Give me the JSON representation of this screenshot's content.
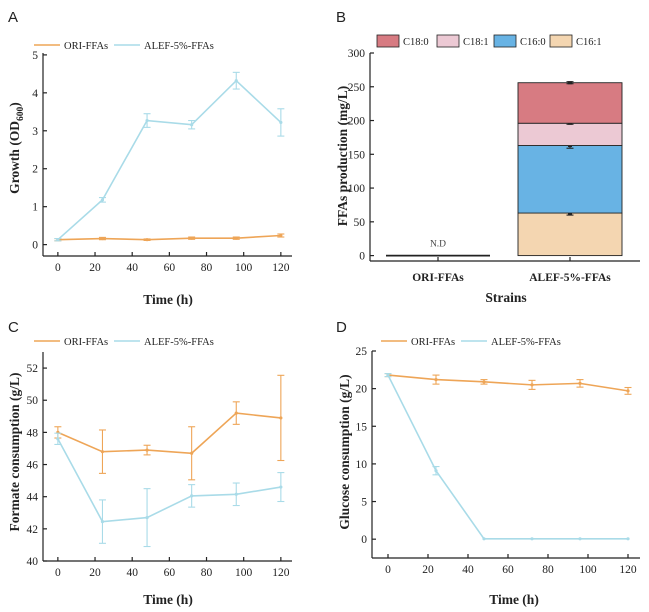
{
  "colors": {
    "orange": "#EEA557",
    "lightblue": "#A9DBE8",
    "c18_0": "#D77B82",
    "c18_1": "#ECC9D4",
    "c16_0": "#68B3E4",
    "c16_1": "#F4D6B1",
    "axis": "#222222"
  },
  "chart_data": [
    {
      "panel": "A",
      "type": "line",
      "title": "",
      "xlabel": "Time (h)",
      "ylabel_main": "Growth (OD",
      "ylabel_sub": "600",
      "ylabel_close": ")",
      "xlim": [
        -8,
        126
      ],
      "ylim": [
        -0.3,
        5.05
      ],
      "xticks": [
        0,
        20,
        40,
        60,
        80,
        100,
        120
      ],
      "yticks": [
        0,
        1,
        2,
        3,
        4,
        5
      ],
      "series": [
        {
          "name": "ORI-FFAs",
          "color_key": "orange",
          "x": [
            0,
            24,
            48,
            72,
            96,
            120
          ],
          "y": [
            0.13,
            0.16,
            0.13,
            0.17,
            0.17,
            0.24
          ],
          "err": [
            0.03,
            0.03,
            0.02,
            0.03,
            0.03,
            0.04
          ]
        },
        {
          "name": "ALEF-5%-FFAs",
          "color_key": "lightblue",
          "x": [
            0,
            24,
            48,
            72,
            96,
            120
          ],
          "y": [
            0.13,
            1.18,
            3.27,
            3.16,
            4.32,
            3.22
          ],
          "err": [
            0.03,
            0.06,
            0.18,
            0.11,
            0.22,
            0.36
          ]
        }
      ]
    },
    {
      "panel": "B",
      "type": "stacked-bar",
      "title": "",
      "xlabel": "Strains",
      "ylabel": "FFAs production (mg/L)",
      "ylim": [
        -8,
        300
      ],
      "yticks": [
        0,
        50,
        100,
        150,
        200,
        250,
        300
      ],
      "categories": [
        "ORI-FFAs",
        "ALEF-5%-FFAs"
      ],
      "na_label": "N.D",
      "legend": [
        "C18:0",
        "C18:1",
        "C16:0",
        "C16:1"
      ],
      "series": [
        {
          "name": "C16:1",
          "color_key": "c16_1",
          "values": [
            0,
            63
          ],
          "top_err": [
            0,
            3
          ]
        },
        {
          "name": "C16:0",
          "color_key": "c16_0",
          "values": [
            0,
            100
          ],
          "top_err": [
            0,
            4
          ]
        },
        {
          "name": "C18:1",
          "color_key": "c18_1",
          "values": [
            0,
            33
          ],
          "top_err": [
            0,
            1.5
          ]
        },
        {
          "name": "C18:0",
          "color_key": "c18_0",
          "values": [
            0,
            60
          ],
          "top_err": [
            0,
            1.5
          ]
        }
      ]
    },
    {
      "panel": "C",
      "type": "line",
      "title": "",
      "xlabel": "Time (h)",
      "ylabel": "Formate consumption (g/L)",
      "xlim": [
        -8,
        126
      ],
      "ylim": [
        40,
        53
      ],
      "xticks": [
        0,
        20,
        40,
        60,
        80,
        100,
        120
      ],
      "yticks": [
        40,
        42,
        44,
        46,
        48,
        50,
        52
      ],
      "series": [
        {
          "name": "ORI-FFAs",
          "color_key": "orange",
          "x": [
            0,
            24,
            48,
            72,
            96,
            120
          ],
          "y": [
            48.0,
            46.8,
            46.9,
            46.7,
            49.2,
            48.9
          ],
          "err": [
            0.35,
            1.35,
            0.3,
            1.65,
            0.7,
            2.65
          ]
        },
        {
          "name": "ALEF-5%-FFAs",
          "color_key": "lightblue",
          "x": [
            0,
            24,
            48,
            72,
            96,
            120
          ],
          "y": [
            47.6,
            42.45,
            42.7,
            44.05,
            44.15,
            44.6
          ],
          "err": [
            0.35,
            1.35,
            1.8,
            0.7,
            0.7,
            0.9
          ]
        }
      ]
    },
    {
      "panel": "D",
      "type": "line",
      "title": "",
      "xlabel": "Time (h)",
      "ylabel": "Glucose consumption (g/L)",
      "xlim": [
        -8,
        126
      ],
      "ylim": [
        -2.5,
        25
      ],
      "xticks": [
        0,
        20,
        40,
        60,
        80,
        100,
        120
      ],
      "yticks": [
        0,
        5,
        10,
        15,
        20,
        25
      ],
      "series": [
        {
          "name": "ORI-FFAs",
          "color_key": "orange",
          "x": [
            0,
            24,
            48,
            72,
            96,
            120
          ],
          "y": [
            21.8,
            21.2,
            20.9,
            20.5,
            20.7,
            19.7
          ],
          "err": [
            0.2,
            0.6,
            0.3,
            0.6,
            0.5,
            0.45
          ]
        },
        {
          "name": "ALEF-5%-FFAs",
          "color_key": "lightblue",
          "x": [
            0,
            24,
            48,
            72,
            96,
            120
          ],
          "y": [
            21.8,
            9.1,
            0.05,
            0.05,
            0.05,
            0.05
          ],
          "err": [
            0.2,
            0.55,
            0,
            0,
            0,
            0
          ]
        }
      ]
    }
  ]
}
